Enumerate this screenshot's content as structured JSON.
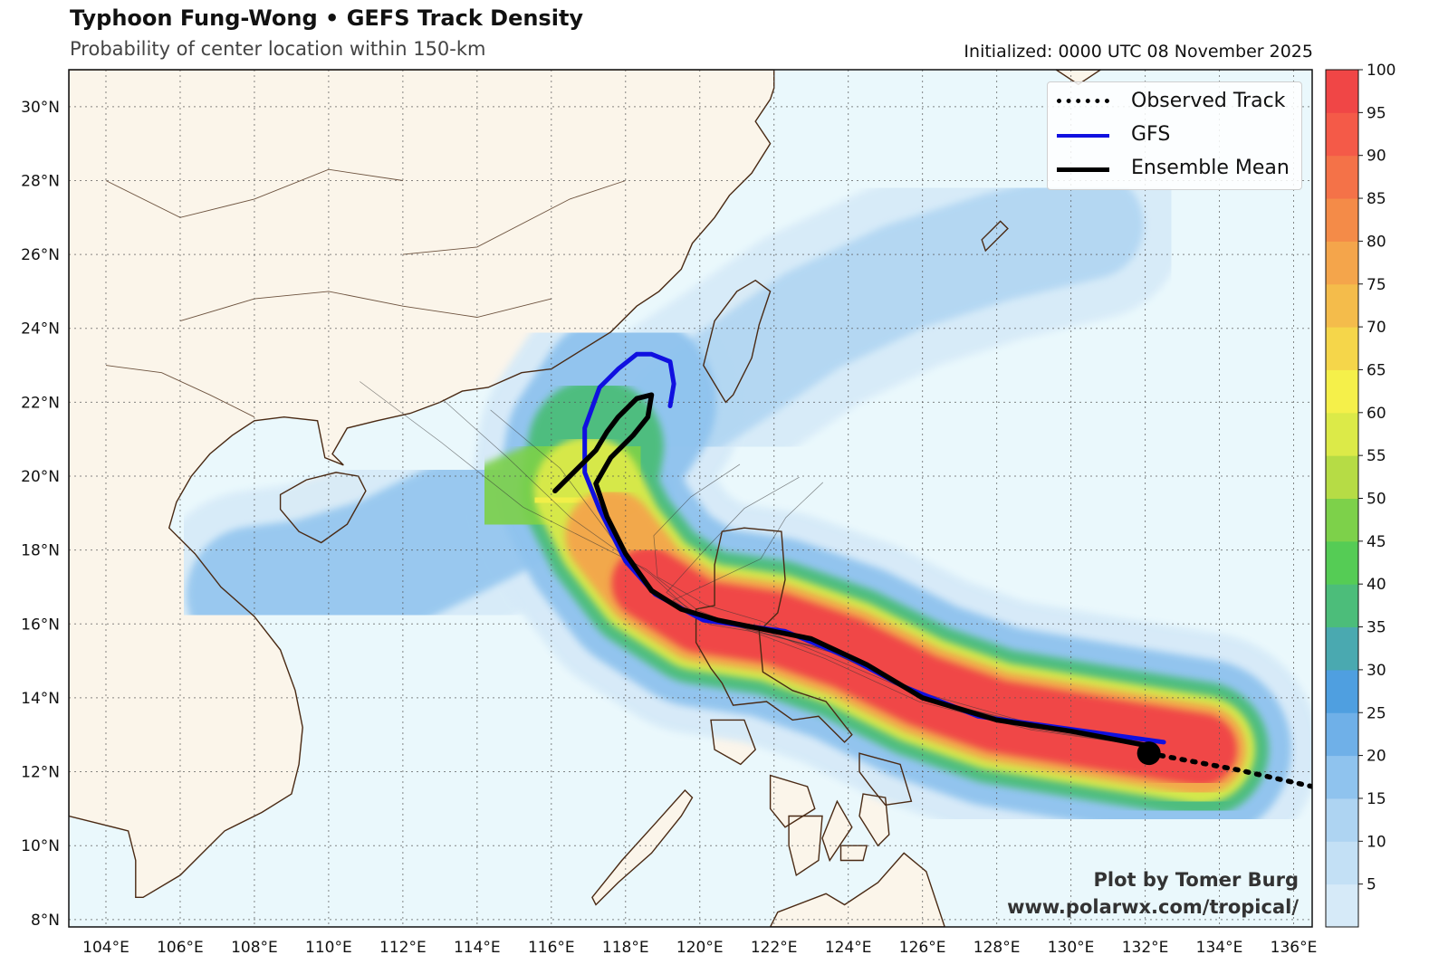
{
  "header": {
    "title": "Typhoon Fung-Wong • GEFS Track Density",
    "subtitle": "Probability of center location within 150-km",
    "initialized": "Initialized: 0000 UTC 08 November 2025"
  },
  "map": {
    "lon_range": [
      103,
      136.5
    ],
    "lat_range": [
      7.8,
      31
    ],
    "lon_ticks": [
      "104°E",
      "106°E",
      "108°E",
      "110°E",
      "112°E",
      "114°E",
      "116°E",
      "118°E",
      "120°E",
      "122°E",
      "124°E",
      "126°E",
      "128°E",
      "130°E",
      "132°E",
      "134°E",
      "136°E"
    ],
    "lat_ticks": [
      "8°N",
      "10°N",
      "12°N",
      "14°N",
      "16°N",
      "18°N",
      "20°N",
      "22°N",
      "24°N",
      "26°N",
      "28°N",
      "30°N"
    ],
    "colors": {
      "ocean": "#eaf8fc",
      "land": "#fbf5ea",
      "coast": "#4a2a14",
      "gfs": "#1010e0",
      "ensemble_mean": "#000000",
      "observed": "#000000"
    }
  },
  "legend": {
    "items": [
      {
        "label": "Observed Track",
        "style": "dotted"
      },
      {
        "label": "GFS",
        "style": "blue"
      },
      {
        "label": "Ensemble Mean",
        "style": "black"
      }
    ]
  },
  "colorbar": {
    "ticks": [
      "5",
      "10",
      "15",
      "20",
      "25",
      "30",
      "35",
      "40",
      "45",
      "50",
      "55",
      "60",
      "65",
      "70",
      "75",
      "80",
      "85",
      "90",
      "95",
      "100"
    ],
    "colors": [
      "#d6eaf8",
      "#c3e0f5",
      "#aed4f2",
      "#8fc3ee",
      "#6fb0e8",
      "#4f9fe0",
      "#4aa9b0",
      "#4cbd7a",
      "#55cc55",
      "#7dd14a",
      "#b6dc45",
      "#dcea48",
      "#f5f04a",
      "#f5d64a",
      "#f4bc4b",
      "#f4a54b",
      "#f48b48",
      "#f47248",
      "#f45a48",
      "#f04646"
    ]
  },
  "tracks": {
    "observed": [
      [
        136.5,
        11.6
      ],
      [
        134.5,
        12.05
      ],
      [
        132.1,
        12.5
      ]
    ],
    "gfs": [
      [
        132.5,
        12.8
      ],
      [
        130,
        13.15
      ],
      [
        127.5,
        13.5
      ],
      [
        125.5,
        14.3
      ],
      [
        124,
        15.1
      ],
      [
        122.3,
        15.8
      ],
      [
        120.1,
        16.1
      ],
      [
        118.8,
        16.8
      ],
      [
        118,
        17.7
      ],
      [
        117.3,
        19.1
      ],
      [
        116.9,
        20.1
      ],
      [
        116.9,
        21.3
      ],
      [
        117.3,
        22.4
      ],
      [
        117.8,
        22.9
      ],
      [
        118.3,
        23.3
      ],
      [
        118.7,
        23.3
      ],
      [
        119.2,
        23.1
      ],
      [
        119.3,
        22.5
      ],
      [
        119.2,
        21.9
      ]
    ],
    "ensemble_mean": [
      [
        132.1,
        12.7
      ],
      [
        130,
        13.1
      ],
      [
        128,
        13.4
      ],
      [
        126,
        14.0
      ],
      [
        124.5,
        14.9
      ],
      [
        123,
        15.6
      ],
      [
        122,
        15.8
      ],
      [
        120.5,
        16.1
      ],
      [
        119.5,
        16.4
      ],
      [
        118.7,
        16.9
      ],
      [
        118,
        17.9
      ],
      [
        117.5,
        18.9
      ],
      [
        117.2,
        19.8
      ],
      [
        117.6,
        20.5
      ],
      [
        118.2,
        21.1
      ],
      [
        118.6,
        21.6
      ],
      [
        118.7,
        22.2
      ],
      [
        118.3,
        22.1
      ],
      [
        117.8,
        21.6
      ],
      [
        117.5,
        21.2
      ],
      [
        117.2,
        20.7
      ],
      [
        116.9,
        20.4
      ],
      [
        116.7,
        20.2
      ],
      [
        116.4,
        19.9
      ],
      [
        116.1,
        19.6
      ]
    ]
  },
  "credit": {
    "line1": "Plot by Tomer Burg",
    "line2": "www.polarwx.com/tropical/"
  }
}
